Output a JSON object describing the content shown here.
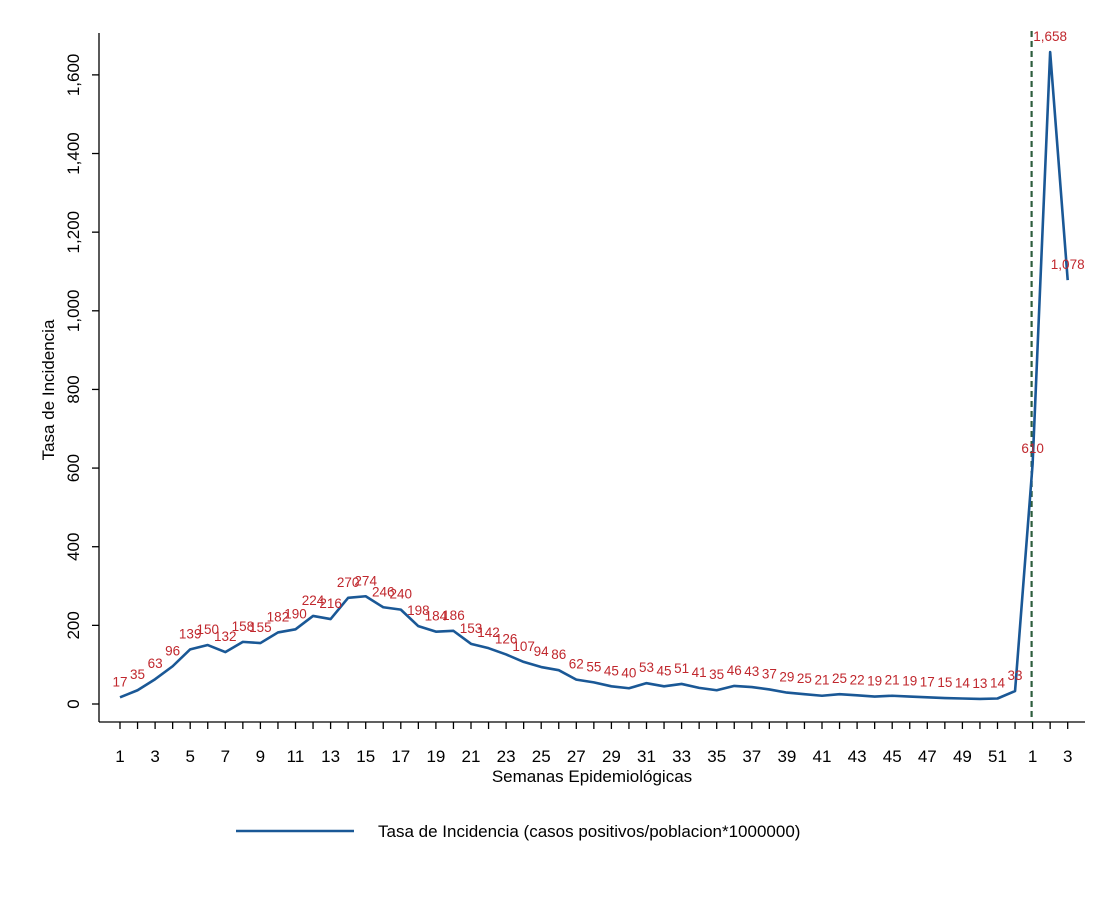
{
  "chart_data": {
    "type": "line",
    "title": "",
    "xlabel": "Semanas Epidemiológicas",
    "ylabel": "Tasa de Incidencia",
    "ylim": [
      0,
      1700
    ],
    "yticks": [
      0,
      200,
      400,
      600,
      800,
      1000,
      1200,
      1400,
      1600
    ],
    "ytick_labels": [
      "0",
      "200",
      "400",
      "600",
      "800",
      "1,000",
      "1,200",
      "1,400",
      "1,600"
    ],
    "x": [
      1,
      2,
      3,
      4,
      5,
      6,
      7,
      8,
      9,
      10,
      11,
      12,
      13,
      14,
      15,
      16,
      17,
      18,
      19,
      20,
      21,
      22,
      23,
      24,
      25,
      26,
      27,
      28,
      29,
      30,
      31,
      32,
      33,
      34,
      35,
      36,
      37,
      38,
      39,
      40,
      41,
      42,
      43,
      44,
      45,
      46,
      47,
      48,
      49,
      50,
      51,
      52,
      1,
      2,
      3
    ],
    "xtick_labels": [
      "1",
      "3",
      "5",
      "7",
      "9",
      "11",
      "13",
      "15",
      "17",
      "19",
      "21",
      "23",
      "25",
      "27",
      "29",
      "31",
      "33",
      "35",
      "37",
      "39",
      "41",
      "43",
      "45",
      "47",
      "49",
      "51",
      "1",
      "3"
    ],
    "series": [
      {
        "name": "Tasa de Incidencia (casos positivos/poblacion*1000000)",
        "color": "#1a5896",
        "values": [
          17,
          35,
          63,
          96,
          139,
          150,
          132,
          158,
          155,
          182,
          190,
          224,
          216,
          270,
          274,
          246,
          240,
          198,
          184,
          186,
          153,
          142,
          126,
          107,
          94,
          86,
          62,
          55,
          45,
          40,
          53,
          45,
          51,
          41,
          35,
          46,
          43,
          37,
          29,
          25,
          21,
          25,
          22,
          19,
          21,
          19,
          17,
          15,
          14,
          13,
          14,
          33,
          610,
          1658,
          1078
        ],
        "labels": [
          "17",
          "35",
          "63",
          "96",
          "139",
          "150",
          "132",
          "158",
          "155",
          "182",
          "190",
          "224",
          "216",
          "270",
          "274",
          "246",
          "240",
          "198",
          "184",
          "186",
          "153",
          "142",
          "126",
          "107",
          "94",
          "86",
          "62",
          "55",
          "45",
          "40",
          "53",
          "45",
          "51",
          "41",
          "35",
          "46",
          "43",
          "37",
          "29",
          "25",
          "21",
          "25",
          "22",
          "19",
          "21",
          "19",
          "17",
          "15",
          "14",
          "13",
          "14",
          "33",
          "610",
          "1,658",
          "1,078"
        ]
      }
    ],
    "label_color": "#c0272d",
    "reference_line": {
      "at_week_index": 52,
      "style": "dashed",
      "color": "#2e5e3e"
    },
    "legend_position": "bottom",
    "grid": false
  }
}
